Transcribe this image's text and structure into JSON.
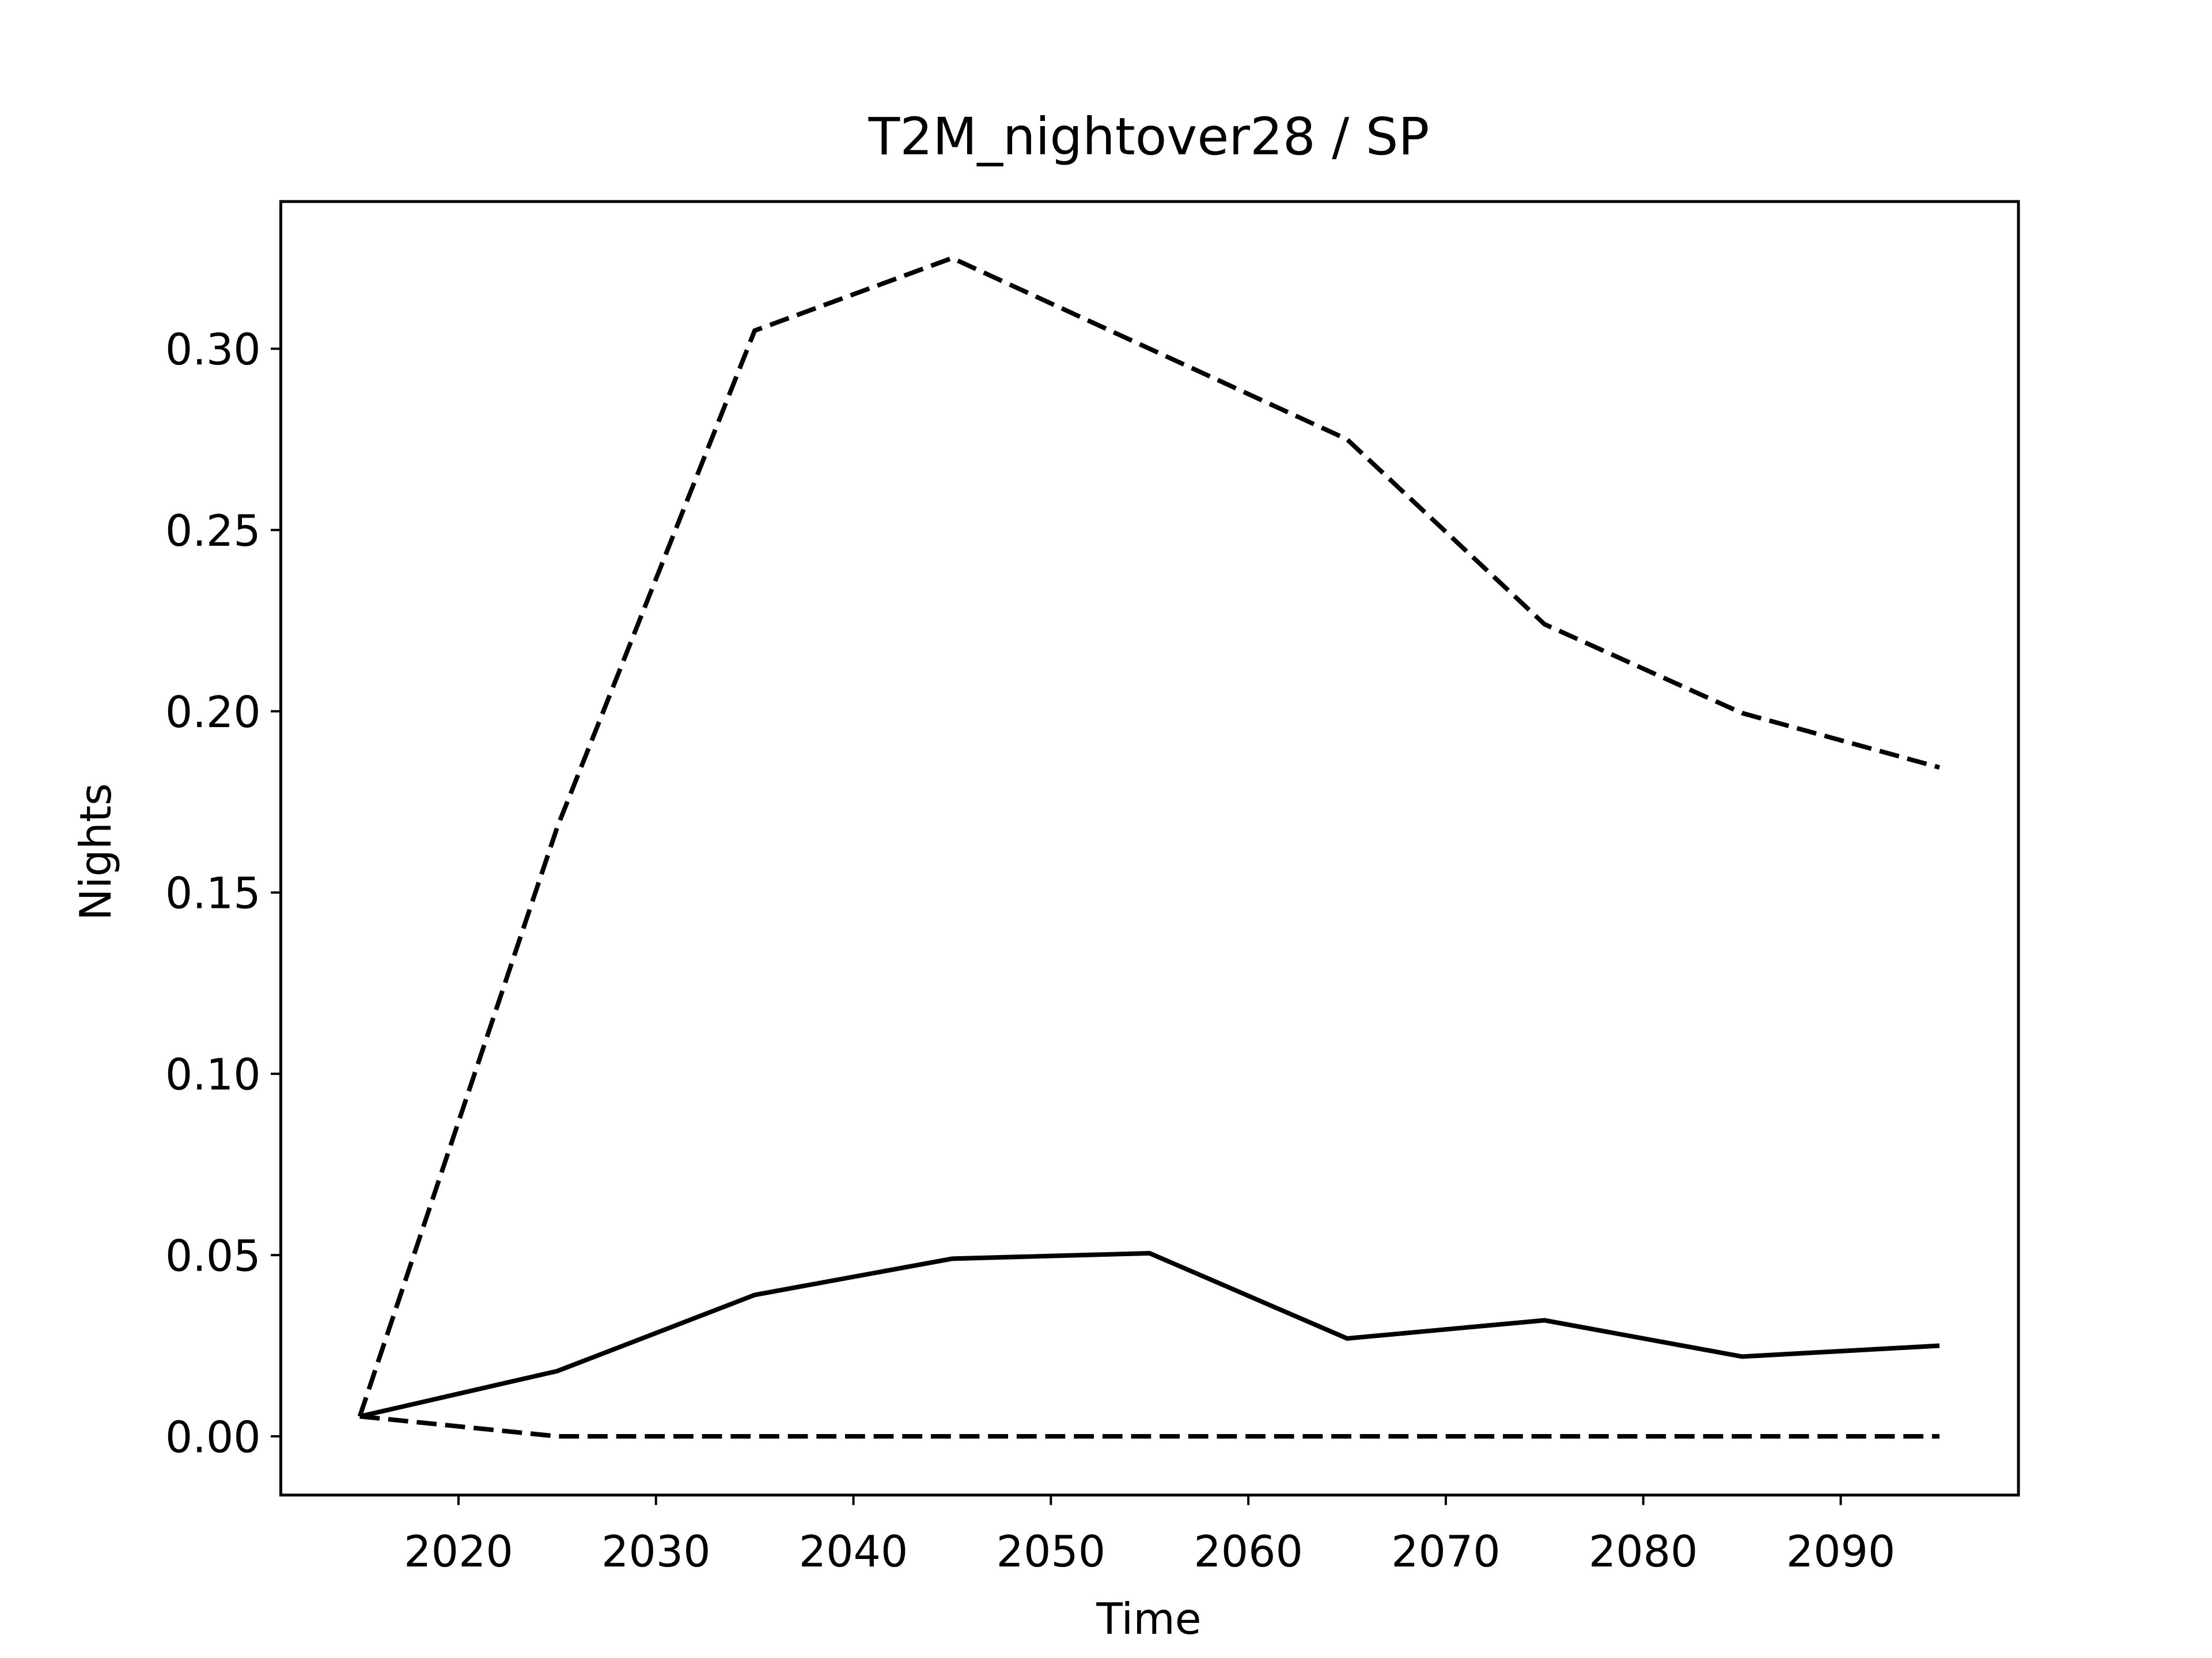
{
  "chart_data": {
    "type": "line",
    "title": "T2M_nightover28 / SP",
    "xlabel": "Time",
    "ylabel": "Nights",
    "x": [
      2015,
      2025,
      2035,
      2045,
      2055,
      2065,
      2075,
      2085,
      2095
    ],
    "series": [
      {
        "color": "#000000",
        "linestyle": "solid",
        "values": [
          0.0055,
          0.018,
          0.039,
          0.049,
          0.0505,
          0.027,
          0.032,
          0.022,
          0.025
        ]
      },
      {
        "color": "#000000",
        "linestyle": "dashed",
        "values": [
          0.0055,
          0.168,
          0.305,
          0.325,
          0.3,
          0.275,
          0.224,
          0.1995,
          0.1845
        ]
      },
      {
        "color": "#000000",
        "linestyle": "dashed",
        "values": [
          0.0055,
          0,
          0,
          0,
          0,
          0,
          0,
          0,
          0
        ]
      }
    ],
    "xlim": [
      2011,
      2099
    ],
    "ylim": [
      -0.0162,
      0.3406
    ],
    "xticks": [
      2020,
      2030,
      2040,
      2050,
      2060,
      2070,
      2080,
      2090
    ],
    "yticks": [
      {
        "value": 0,
        "label": "0.00"
      },
      {
        "value": 0.05,
        "label": "0.05"
      },
      {
        "value": 0.1,
        "label": "0.10"
      },
      {
        "value": 0.15,
        "label": "0.15"
      },
      {
        "value": 0.2,
        "label": "0.20"
      },
      {
        "value": 0.25,
        "label": "0.25"
      },
      {
        "value": 0.3,
        "label": "0.30"
      }
    ],
    "grid": false
  }
}
